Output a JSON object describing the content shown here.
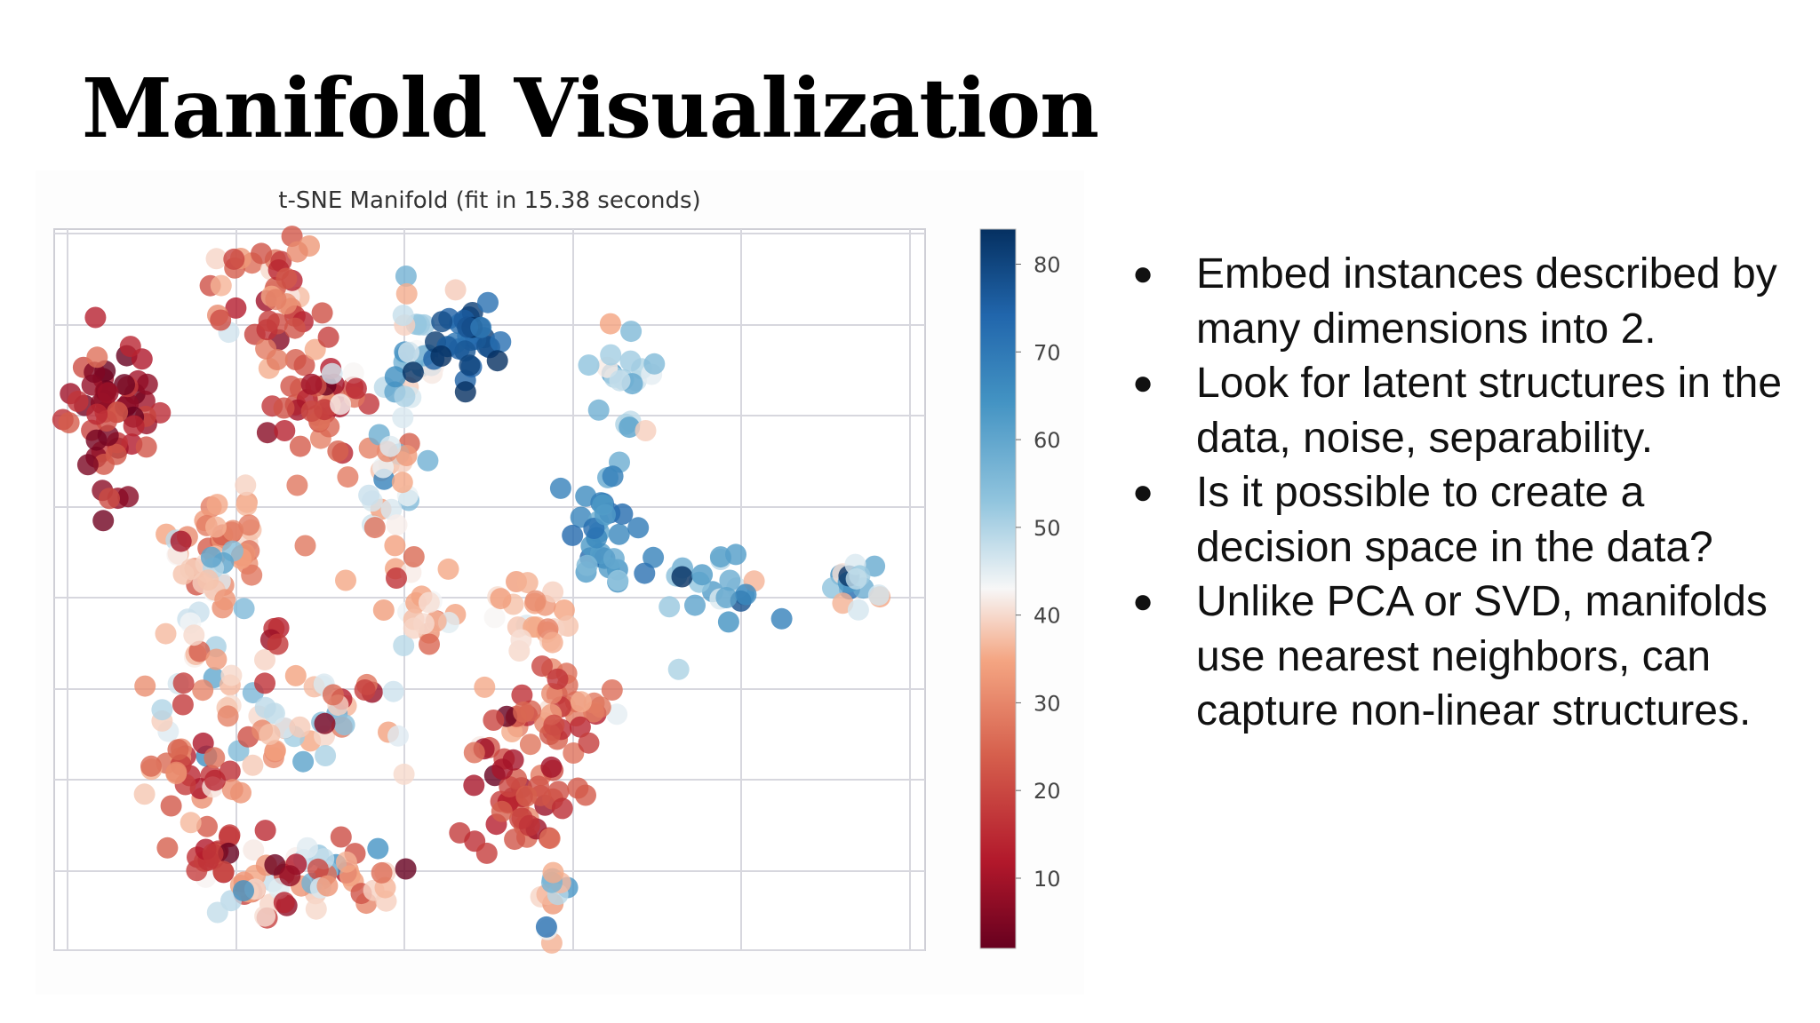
{
  "slide": {
    "title": "Manifold Visualization",
    "bullets": [
      "Embed instances described by many dimensions into 2.",
      "Look for latent structures in the data, noise, separability.",
      "Is it possible to create a decision space in the data?",
      "Unlike PCA or SVD, manifolds use nearest neighbors, can capture non-linear structures."
    ]
  },
  "chart_data": {
    "type": "scatter",
    "title": "t-SNE Manifold (fit in 15.38 seconds)",
    "xlabel": "",
    "ylabel": "",
    "xlim": [
      0,
      1
    ],
    "ylim": [
      0,
      1
    ],
    "grid": true,
    "axis_tick_labels_shown": false,
    "colorbar": {
      "min": 2,
      "max": 84,
      "ticks": [
        10,
        20,
        30,
        40,
        50,
        60,
        70,
        80
      ],
      "colormap": "RdBu",
      "low_color": "#67001f",
      "mid_color": "#f7f7f7",
      "high_color": "#053061"
    },
    "clusters": [
      {
        "x": 0.065,
        "y": 0.74,
        "sx": 0.028,
        "sy": 0.055,
        "n": 55,
        "value": 12,
        "spread": 7
      },
      {
        "x": 0.24,
        "y": 0.91,
        "sx": 0.035,
        "sy": 0.045,
        "n": 40,
        "value": 25,
        "spread": 10
      },
      {
        "x": 0.31,
        "y": 0.76,
        "sx": 0.03,
        "sy": 0.05,
        "n": 45,
        "value": 22,
        "spread": 9
      },
      {
        "x": 0.42,
        "y": 0.82,
        "sx": 0.02,
        "sy": 0.055,
        "n": 30,
        "value": 50,
        "spread": 9
      },
      {
        "x": 0.48,
        "y": 0.84,
        "sx": 0.02,
        "sy": 0.025,
        "n": 30,
        "value": 77,
        "spread": 5
      },
      {
        "x": 0.65,
        "y": 0.79,
        "sx": 0.02,
        "sy": 0.035,
        "n": 20,
        "value": 50,
        "spread": 6
      },
      {
        "x": 0.19,
        "y": 0.58,
        "sx": 0.03,
        "sy": 0.05,
        "n": 35,
        "value": 32,
        "spread": 8
      },
      {
        "x": 0.165,
        "y": 0.46,
        "sx": 0.025,
        "sy": 0.06,
        "n": 30,
        "value": 42,
        "spread": 12
      },
      {
        "x": 0.38,
        "y": 0.64,
        "sx": 0.02,
        "sy": 0.05,
        "n": 25,
        "value": 44,
        "spread": 10
      },
      {
        "x": 0.63,
        "y": 0.6,
        "sx": 0.017,
        "sy": 0.04,
        "n": 30,
        "value": 66,
        "spread": 5
      },
      {
        "x": 0.74,
        "y": 0.51,
        "sx": 0.04,
        "sy": 0.03,
        "n": 25,
        "value": 58,
        "spread": 9
      },
      {
        "x": 0.91,
        "y": 0.51,
        "sx": 0.022,
        "sy": 0.017,
        "n": 15,
        "value": 55,
        "spread": 12
      },
      {
        "x": 0.42,
        "y": 0.47,
        "sx": 0.02,
        "sy": 0.04,
        "n": 20,
        "value": 33,
        "spread": 8
      },
      {
        "x": 0.56,
        "y": 0.45,
        "sx": 0.03,
        "sy": 0.035,
        "n": 25,
        "value": 36,
        "spread": 6
      },
      {
        "x": 0.56,
        "y": 0.33,
        "sx": 0.05,
        "sy": 0.03,
        "n": 45,
        "value": 26,
        "spread": 10
      },
      {
        "x": 0.54,
        "y": 0.21,
        "sx": 0.03,
        "sy": 0.04,
        "n": 40,
        "value": 16,
        "spread": 6
      },
      {
        "x": 0.26,
        "y": 0.32,
        "sx": 0.07,
        "sy": 0.035,
        "n": 55,
        "value": 34,
        "spread": 14
      },
      {
        "x": 0.15,
        "y": 0.25,
        "sx": 0.03,
        "sy": 0.035,
        "n": 25,
        "value": 22,
        "spread": 10
      },
      {
        "x": 0.28,
        "y": 0.1,
        "sx": 0.06,
        "sy": 0.025,
        "n": 60,
        "value": 34,
        "spread": 14
      },
      {
        "x": 0.19,
        "y": 0.13,
        "sx": 0.02,
        "sy": 0.03,
        "n": 15,
        "value": 15,
        "spread": 6
      },
      {
        "x": 0.575,
        "y": 0.08,
        "sx": 0.008,
        "sy": 0.03,
        "n": 12,
        "value": 45,
        "spread": 12
      },
      {
        "x": 0.25,
        "y": 0.43,
        "sx": 0.01,
        "sy": 0.01,
        "n": 4,
        "value": 12,
        "spread": 3
      }
    ]
  }
}
